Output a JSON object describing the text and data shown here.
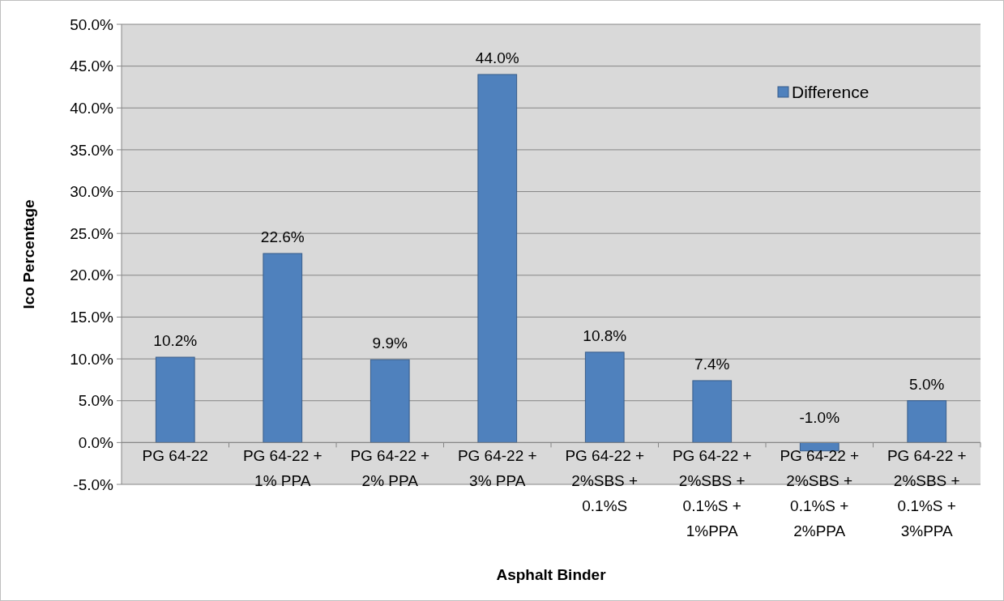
{
  "chart_data": {
    "type": "bar",
    "xlabel": "Asphalt Binder",
    "ylabel": "Ico Percentage",
    "categories": [
      "PG 64-22",
      "PG 64-22 + 1% PPA",
      "PG 64-22 + 2% PPA",
      "PG 64-22 + 3% PPA",
      "PG 64-22 + 2%SBS + 0.1%S",
      "PG 64-22 + 2%SBS + 0.1%S + 1%PPA",
      "PG 64-22 + 2%SBS + 0.1%S + 2%PPA",
      "PG 64-22 + 2%SBS + 0.1%S + 3%PPA"
    ],
    "series": [
      {
        "name": "Difference",
        "color": "#4f81bd",
        "values": [
          10.2,
          22.6,
          9.9,
          44.0,
          10.8,
          7.4,
          -1.0,
          5.0
        ],
        "value_labels": [
          "10.2%",
          "22.6%",
          "9.9%",
          "44.0%",
          "10.8%",
          "7.4%",
          "-1.0%",
          "5.0%"
        ]
      }
    ],
    "ylim": [
      -5,
      50
    ],
    "yticks": [
      {
        "value": -5,
        "label": "-5.0%"
      },
      {
        "value": 0,
        "label": "0.0%"
      },
      {
        "value": 5,
        "label": "5.0%"
      },
      {
        "value": 10,
        "label": "10.0%"
      },
      {
        "value": 15,
        "label": "15.0%"
      },
      {
        "value": 20,
        "label": "20.0%"
      },
      {
        "value": 25,
        "label": "25.0%"
      },
      {
        "value": 30,
        "label": "30.0%"
      },
      {
        "value": 35,
        "label": "35.0%"
      },
      {
        "value": 40,
        "label": "40.0%"
      },
      {
        "value": 45,
        "label": "45.0%"
      },
      {
        "value": 50,
        "label": "50.0%"
      }
    ],
    "grid": "y",
    "legend": "top right"
  }
}
